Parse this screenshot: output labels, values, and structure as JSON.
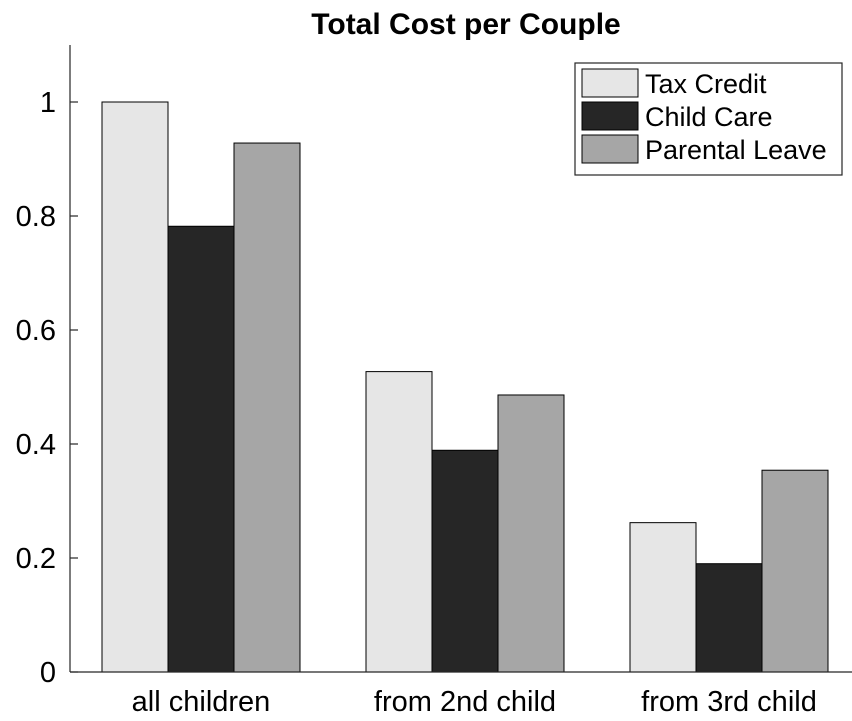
{
  "chart_data": {
    "type": "bar",
    "title": "Total Cost per Couple",
    "xlabel": "",
    "ylabel": "",
    "categories": [
      "all children",
      "from 2nd child",
      "from 3rd child"
    ],
    "series": [
      {
        "name": "Tax Credit",
        "values": [
          1.0,
          0.527,
          0.262
        ],
        "color": "#e6e6e6"
      },
      {
        "name": "Child Care",
        "values": [
          0.782,
          0.389,
          0.19
        ],
        "color": "#262626"
      },
      {
        "name": "Parental Leave",
        "values": [
          0.928,
          0.486,
          0.354
        ],
        "color": "#a6a6a6"
      }
    ],
    "ylim": [
      0,
      1.1
    ],
    "yticks": [
      "0",
      "0.2",
      "0.4",
      "0.6",
      "0.8",
      "1"
    ],
    "ytick_values": [
      0,
      0.2,
      0.4,
      0.6,
      0.8,
      1.0
    ],
    "grid": false,
    "legend_position": "top-right"
  }
}
